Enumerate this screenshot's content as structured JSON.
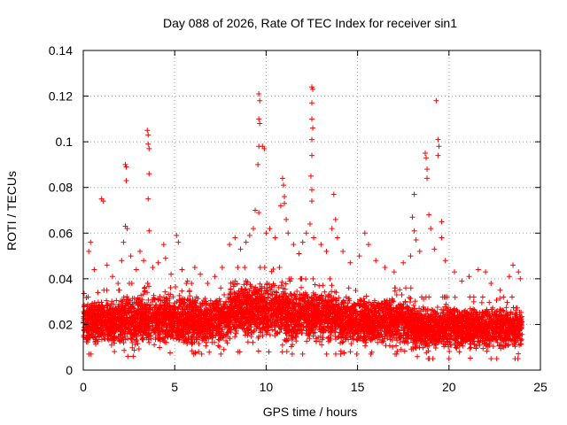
{
  "chart_data": {
    "type": "scatter",
    "title": "Day 088 of 2026, Rate Of TEC Index for receiver sin1",
    "xlabel": "GPS time / hours",
    "ylabel": "ROTI / TECUs",
    "xlim": [
      0,
      25
    ],
    "ylim": [
      0,
      0.14
    ],
    "xticks": [
      0,
      5,
      10,
      15,
      20,
      25
    ],
    "xtick_labels": [
      "0",
      "5",
      "10",
      "15",
      "20",
      "25"
    ],
    "yticks": [
      0,
      0.02,
      0.04,
      0.06,
      0.08,
      0.1,
      0.12,
      0.14
    ],
    "ytick_labels": [
      "0",
      "0.02",
      "0.04",
      "0.06",
      "0.08",
      "0.1",
      "0.12",
      "0.14"
    ],
    "grid": true,
    "marker": "plus",
    "color": "#ff0000",
    "series": [
      {
        "name": "ROTI",
        "points": [
          [
            0.2,
            0.026
          ],
          [
            0.3,
            0.052
          ],
          [
            0.4,
            0.056
          ],
          [
            0.6,
            0.044
          ],
          [
            0.8,
            0.034
          ],
          [
            1.0,
            0.075
          ],
          [
            1.1,
            0.074
          ],
          [
            1.3,
            0.046
          ],
          [
            1.6,
            0.041
          ],
          [
            1.9,
            0.038
          ],
          [
            2.1,
            0.048
          ],
          [
            2.2,
            0.056
          ],
          [
            2.3,
            0.063
          ],
          [
            2.3,
            0.09
          ],
          [
            2.35,
            0.089
          ],
          [
            2.35,
            0.083
          ],
          [
            2.4,
            0.062
          ],
          [
            2.6,
            0.05
          ],
          [
            2.9,
            0.044
          ],
          [
            3.1,
            0.052
          ],
          [
            3.3,
            0.048
          ],
          [
            3.5,
            0.105
          ],
          [
            3.55,
            0.103
          ],
          [
            3.55,
            0.099
          ],
          [
            3.6,
            0.097
          ],
          [
            3.6,
            0.086
          ],
          [
            3.55,
            0.075
          ],
          [
            3.6,
            0.061
          ],
          [
            3.8,
            0.045
          ],
          [
            4.1,
            0.047
          ],
          [
            4.4,
            0.055
          ],
          [
            4.5,
            0.049
          ],
          [
            4.8,
            0.042
          ],
          [
            5.1,
            0.059
          ],
          [
            5.2,
            0.056
          ],
          [
            5.4,
            0.044
          ],
          [
            5.7,
            0.039
          ],
          [
            6.1,
            0.045
          ],
          [
            6.4,
            0.042
          ],
          [
            6.8,
            0.038
          ],
          [
            7.2,
            0.041
          ],
          [
            7.6,
            0.045
          ],
          [
            8.0,
            0.055
          ],
          [
            8.3,
            0.058
          ],
          [
            8.6,
            0.053
          ],
          [
            8.9,
            0.056
          ],
          [
            9.1,
            0.059
          ],
          [
            9.3,
            0.062
          ],
          [
            9.4,
            0.07
          ],
          [
            9.6,
            0.121
          ],
          [
            9.65,
            0.118
          ],
          [
            9.6,
            0.11
          ],
          [
            9.65,
            0.108
          ],
          [
            9.6,
            0.098
          ],
          [
            9.55,
            0.09
          ],
          [
            9.6,
            0.069
          ],
          [
            9.8,
            0.098
          ],
          [
            9.9,
            0.097
          ],
          [
            10.0,
            0.06
          ],
          [
            10.2,
            0.062
          ],
          [
            10.5,
            0.058
          ],
          [
            10.8,
            0.072
          ],
          [
            10.9,
            0.084
          ],
          [
            10.95,
            0.081
          ],
          [
            11.0,
            0.076
          ],
          [
            11.0,
            0.073
          ],
          [
            11.1,
            0.066
          ],
          [
            11.2,
            0.06
          ],
          [
            11.5,
            0.055
          ],
          [
            11.8,
            0.051
          ],
          [
            12.0,
            0.056
          ],
          [
            12.2,
            0.06
          ],
          [
            12.4,
            0.064
          ],
          [
            12.5,
            0.124
          ],
          [
            12.55,
            0.123
          ],
          [
            12.5,
            0.117
          ],
          [
            12.5,
            0.11
          ],
          [
            12.55,
            0.106
          ],
          [
            12.5,
            0.101
          ],
          [
            12.5,
            0.094
          ],
          [
            12.45,
            0.085
          ],
          [
            12.5,
            0.079
          ],
          [
            12.5,
            0.074
          ],
          [
            12.6,
            0.058
          ],
          [
            13.0,
            0.055
          ],
          [
            13.3,
            0.052
          ],
          [
            13.6,
            0.062
          ],
          [
            13.7,
            0.077
          ],
          [
            13.8,
            0.066
          ],
          [
            13.9,
            0.058
          ],
          [
            14.2,
            0.052
          ],
          [
            14.6,
            0.047
          ],
          [
            15.1,
            0.05
          ],
          [
            15.4,
            0.06
          ],
          [
            15.6,
            0.055
          ],
          [
            16.0,
            0.048
          ],
          [
            16.5,
            0.045
          ],
          [
            17.0,
            0.043
          ],
          [
            17.5,
            0.047
          ],
          [
            17.9,
            0.05
          ],
          [
            18.1,
            0.077
          ],
          [
            18.0,
            0.067
          ],
          [
            18.1,
            0.061
          ],
          [
            18.2,
            0.057
          ],
          [
            18.4,
            0.052
          ],
          [
            18.7,
            0.095
          ],
          [
            18.75,
            0.093
          ],
          [
            18.8,
            0.088
          ],
          [
            18.8,
            0.084
          ],
          [
            18.9,
            0.068
          ],
          [
            19.0,
            0.062
          ],
          [
            19.2,
            0.053
          ],
          [
            19.3,
            0.118
          ],
          [
            19.4,
            0.101
          ],
          [
            19.45,
            0.098
          ],
          [
            19.4,
            0.094
          ],
          [
            19.6,
            0.065
          ],
          [
            19.6,
            0.058
          ],
          [
            19.8,
            0.048
          ],
          [
            20.3,
            0.043
          ],
          [
            20.7,
            0.039
          ],
          [
            21.1,
            0.041
          ],
          [
            21.6,
            0.044
          ],
          [
            22.0,
            0.043
          ],
          [
            22.3,
            0.038
          ],
          [
            22.8,
            0.035
          ],
          [
            23.3,
            0.041
          ],
          [
            23.5,
            0.046
          ],
          [
            23.8,
            0.043
          ],
          [
            23.9,
            0.04
          ]
        ]
      }
    ],
    "band": {
      "note": "dense background band of ROTI values",
      "segments": [
        {
          "x": [
            0,
            2
          ],
          "low": 0.007,
          "high": 0.035
        },
        {
          "x": [
            2,
            6
          ],
          "low": 0.006,
          "high": 0.038
        },
        {
          "x": [
            6,
            8
          ],
          "low": 0.007,
          "high": 0.036
        },
        {
          "x": [
            8,
            11
          ],
          "low": 0.008,
          "high": 0.045
        },
        {
          "x": [
            11,
            14
          ],
          "low": 0.007,
          "high": 0.04
        },
        {
          "x": [
            14,
            18
          ],
          "low": 0.007,
          "high": 0.036
        },
        {
          "x": [
            18,
            24
          ],
          "low": 0.005,
          "high": 0.032
        }
      ]
    }
  }
}
